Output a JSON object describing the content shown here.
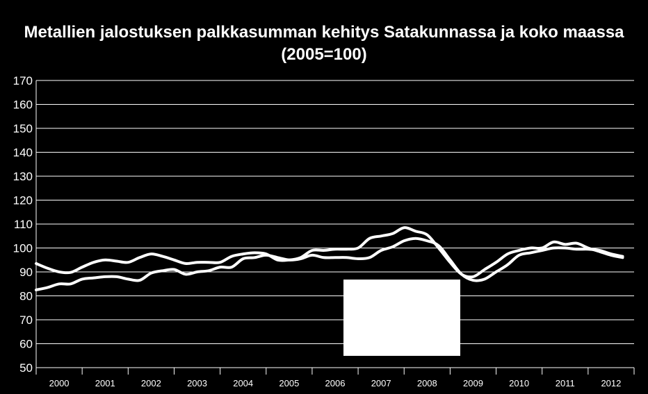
{
  "chart_data": {
    "type": "line",
    "title": "Metallien jalostuksen palkkasumman kehitys Satakunnassa ja koko maassa",
    "subtitle": "(2005=100)",
    "xlabel": "",
    "ylabel": "",
    "ylim": [
      50,
      170
    ],
    "yticks": [
      50,
      60,
      70,
      80,
      90,
      100,
      110,
      120,
      130,
      140,
      150,
      160,
      170
    ],
    "categories": [
      "2000",
      "2001",
      "2002",
      "2003",
      "2004",
      "2005",
      "2006",
      "2007",
      "2008",
      "2009",
      "2010",
      "2011",
      "2012"
    ],
    "grid": true,
    "legend": "none",
    "colors": {
      "background": "#000000",
      "line": "#ffffff",
      "grid": "#ffffff",
      "box": "#ffffff"
    },
    "series": [
      {
        "x": [
          2000.0,
          2000.25,
          2000.5,
          2000.75,
          2001.0,
          2001.25,
          2001.5,
          2001.75,
          2002.0,
          2002.25,
          2002.5,
          2002.75,
          2003.0,
          2003.25,
          2003.5,
          2003.75,
          2004.0,
          2004.25,
          2004.5,
          2004.75,
          2005.0,
          2005.25,
          2005.5,
          2005.75,
          2006.0,
          2006.25,
          2006.5,
          2006.75,
          2007.0,
          2007.25,
          2007.5,
          2007.75,
          2008.0,
          2008.25,
          2008.5,
          2008.75,
          2009.0,
          2009.25,
          2009.5,
          2009.75,
          2010.0,
          2010.25,
          2010.5,
          2010.75,
          2011.0,
          2011.25,
          2011.5,
          2011.75,
          2012.0,
          2012.25,
          2012.5,
          2012.75
        ],
        "values": [
          93.5,
          91.5,
          90.0,
          89.8,
          92.0,
          94.0,
          95.0,
          94.5,
          94.0,
          96.0,
          97.5,
          96.5,
          95.0,
          93.5,
          94.0,
          94.0,
          94.0,
          96.5,
          97.5,
          98.0,
          97.5,
          95.0,
          95.0,
          96.0,
          99.0,
          99.0,
          99.5,
          99.5,
          100.0,
          104.0,
          105.0,
          106.0,
          108.5,
          107.0,
          105.5,
          100.0,
          94.0,
          89.0,
          88.0,
          91.0,
          94.0,
          97.5,
          99.0,
          100.0,
          100.0,
          102.5,
          101.5,
          102.0,
          100.0,
          98.5,
          97.0,
          96.0
        ]
      },
      {
        "x": [
          2000.0,
          2000.25,
          2000.5,
          2000.75,
          2001.0,
          2001.25,
          2001.5,
          2001.75,
          2002.0,
          2002.25,
          2002.5,
          2002.75,
          2003.0,
          2003.25,
          2003.5,
          2003.75,
          2004.0,
          2004.25,
          2004.5,
          2004.75,
          2005.0,
          2005.25,
          2005.5,
          2005.75,
          2006.0,
          2006.25,
          2006.5,
          2006.75,
          2007.0,
          2007.25,
          2007.5,
          2007.75,
          2008.0,
          2008.25,
          2008.5,
          2008.75,
          2009.0,
          2009.25,
          2009.5,
          2009.75,
          2010.0,
          2010.25,
          2010.5,
          2010.75,
          2011.0,
          2011.25,
          2011.5,
          2011.75,
          2012.0,
          2012.25,
          2012.5,
          2012.75
        ],
        "values": [
          82.5,
          83.5,
          85.0,
          85.0,
          87.0,
          87.5,
          88.0,
          88.0,
          87.0,
          86.5,
          89.5,
          90.5,
          91.0,
          89.0,
          90.0,
          90.5,
          92.0,
          92.0,
          95.5,
          96.0,
          97.0,
          96.0,
          95.0,
          95.5,
          97.0,
          96.0,
          96.0,
          96.0,
          95.5,
          96.0,
          99.0,
          100.5,
          103.0,
          104.0,
          103.0,
          101.0,
          95.0,
          89.0,
          86.5,
          87.0,
          90.0,
          93.0,
          97.0,
          98.0,
          99.0,
          100.0,
          100.0,
          99.5,
          99.5,
          99.0,
          97.5,
          96.5
        ]
      }
    ]
  }
}
